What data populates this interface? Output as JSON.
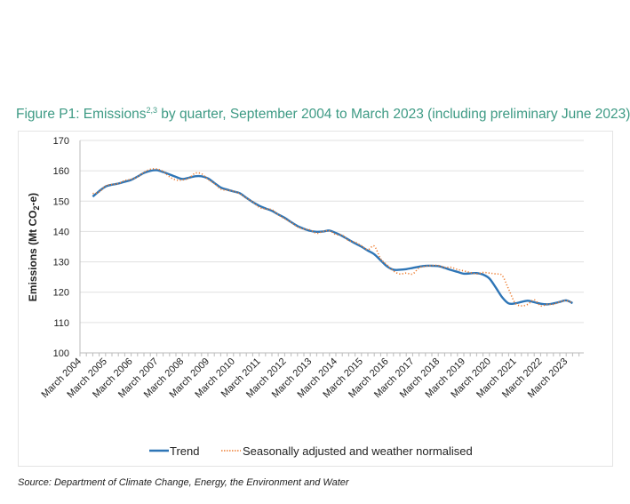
{
  "title": {
    "prefix": "Figure P1: Emissions",
    "superscript": "2,3",
    "suffix": " by quarter, September 2004 to March 2023 (including preliminary June 2023)"
  },
  "source": "Source: Department of Climate Change, Energy, the Environment and Water",
  "chart_data": {
    "type": "line",
    "ylabel": {
      "main": "Emissions (Mt CO",
      "subscript": "2",
      "end": "-e)"
    },
    "ylim": [
      100,
      170
    ],
    "yticks": [
      "100",
      "110",
      "120",
      "130",
      "140",
      "150",
      "160",
      "170"
    ],
    "xtick_labels": [
      "March 2004",
      "March 2005",
      "March 2006",
      "March 2007",
      "March 2008",
      "March 2009",
      "March 2010",
      "March 2011",
      "March 2012",
      "March 2013",
      "March 2014",
      "March 2015",
      "March 2016",
      "March 2017",
      "March 2018",
      "March 2019",
      "March 2020",
      "March 2021",
      "March 2022",
      "March 2023"
    ],
    "x_start": "September 2004",
    "x_end": "June 2023",
    "x_frequency": "quarterly",
    "grid": "horizontal",
    "legend_position": "bottom",
    "series": [
      {
        "name": "Trend",
        "color": "#2e75b6",
        "style": "solid",
        "values": [
          151.5,
          153.3,
          154.8,
          155.4,
          155.8,
          156.4,
          157.0,
          158.1,
          159.3,
          160.0,
          160.2,
          159.6,
          158.8,
          158.0,
          157.3,
          157.7,
          158.2,
          158.2,
          157.5,
          156.0,
          154.5,
          153.8,
          153.2,
          152.6,
          151.1,
          149.7,
          148.5,
          147.6,
          146.8,
          145.6,
          144.5,
          143.1,
          141.8,
          140.9,
          140.2,
          139.9,
          140.0,
          140.3,
          139.5,
          138.5,
          137.3,
          136.1,
          135.0,
          133.7,
          132.5,
          130.5,
          128.5,
          127.4,
          127.4,
          127.6,
          128.0,
          128.4,
          128.7,
          128.7,
          128.6,
          128.0,
          127.3,
          126.7,
          126.1,
          126.2,
          126.3,
          125.8,
          124.5,
          121.5,
          118.3,
          116.3,
          116.3,
          116.8,
          117.2,
          116.7,
          116.2,
          116.0,
          116.3,
          116.8,
          117.3,
          116.4
        ]
      },
      {
        "name": "Seasonally adjusted and weather normalised",
        "color": "#ed7d31",
        "style": "dotted",
        "values": [
          152.5,
          153.0,
          155.0,
          155.5,
          155.8,
          156.8,
          157.2,
          158.0,
          159.5,
          160.5,
          160.6,
          159.8,
          158.0,
          157.0,
          157.0,
          157.5,
          159.2,
          159.0,
          157.2,
          155.8,
          154.0,
          153.6,
          153.3,
          152.4,
          151.0,
          149.8,
          148.0,
          147.4,
          147.2,
          145.5,
          144.2,
          143.0,
          141.5,
          140.8,
          140.5,
          139.4,
          140.0,
          140.2,
          139.0,
          138.8,
          137.0,
          136.5,
          135.3,
          134.0,
          135.2,
          131.0,
          129.0,
          127.0,
          126.0,
          126.3,
          126.0,
          128.0,
          128.5,
          128.8,
          128.8,
          128.2,
          128.2,
          127.5,
          127.0,
          126.5,
          126.0,
          126.5,
          126.3,
          126.0,
          125.5,
          121.0,
          116.5,
          115.5,
          116.0,
          117.5,
          115.5,
          116.0,
          116.0,
          116.8,
          117.2,
          116.4
        ]
      }
    ]
  }
}
